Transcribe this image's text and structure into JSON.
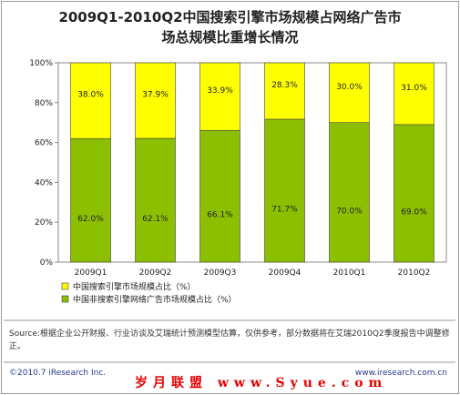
{
  "title_line1": "2009Q1-2010Q2中国搜索引擎市场规模占网络广告市",
  "title_line2": "场总规模比重增长情况",
  "chart_data": {
    "type": "bar",
    "stacked": true,
    "categories": [
      "2009Q1",
      "2009Q2",
      "2009Q3",
      "2009Q4",
      "2010Q1",
      "2010Q2"
    ],
    "series": [
      {
        "name": "中国非搜索引擎网络广告市场规模占比（%）",
        "values": [
          62.0,
          62.1,
          66.1,
          71.7,
          70.0,
          69.0
        ],
        "labels": [
          "62.0%",
          "62.1%",
          "66.1%",
          "71.7%",
          "70.0%",
          "69.0%"
        ],
        "color": "#8cbf00"
      },
      {
        "name": "中国搜索引擎市场规模占比（%）",
        "values": [
          38.0,
          37.9,
          33.9,
          28.3,
          30.0,
          31.0
        ],
        "labels": [
          "38.0%",
          "37.9%",
          "33.9%",
          "28.3%",
          "30.0%",
          "31.0%"
        ],
        "color": "#ffff00"
      }
    ],
    "yticks": [
      "0%",
      "20%",
      "40%",
      "60%",
      "80%",
      "100%"
    ],
    "ylim": [
      0,
      100
    ],
    "legend_position": "bottom",
    "grid": false
  },
  "source_note": "Source:根据企业公开财报、行业访谈及艾瑞统计预测模型估算，仅供参考，部分数据将在艾瑞2010Q2季度报告中调整修正。",
  "footer_copyright": "©2010.7 iResearch Inc.",
  "footer_url": "www.iresearch.com.cn",
  "watermark": "岁月联盟 www.Syue.com"
}
